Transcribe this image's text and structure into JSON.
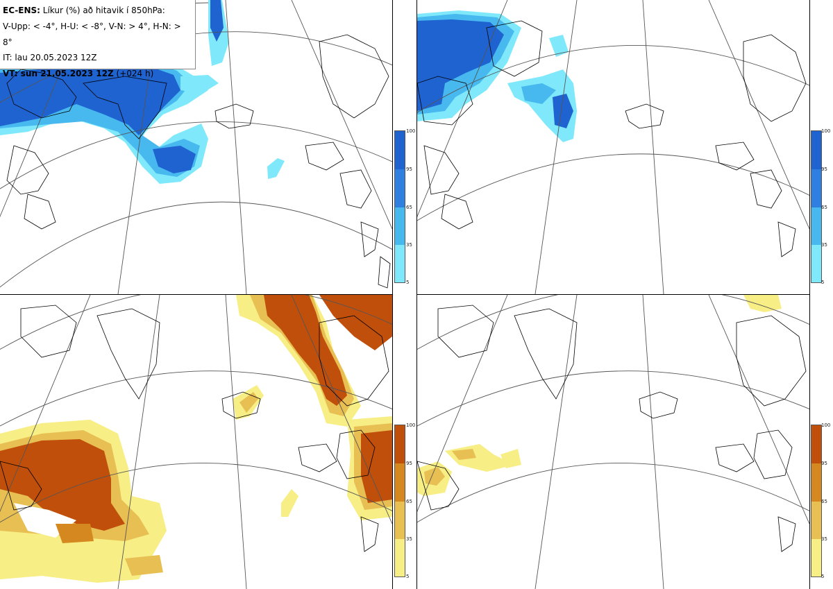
{
  "legend": {
    "model": "EC-ENS:",
    "title": "Líkur (%) að hitavik í 850hPa:",
    "thresholds": "V-Upp: < -4°, H-U: < -8°, V-N: > 4°, H-N: > 8°",
    "issue_time": "IT: lau 20.05.2023 12Z",
    "valid_label": "VT: sun 21.05.2023 12Z",
    "lead_time": "(+024 h)"
  },
  "colorbar": {
    "ticks": [
      "100",
      "95",
      "65",
      "35",
      "5"
    ],
    "blue_scale": [
      "#1f63d1",
      "#2f7fe0",
      "#47b9ef",
      "#7fe9fb",
      "#c7fbff"
    ],
    "orange_scale": [
      "#c04f0b",
      "#d58820",
      "#e8bf52",
      "#f7ee86",
      "#fffbb8"
    ]
  },
  "panels": [
    {
      "id": "V-Upp",
      "description": "cold anomaly < -4°"
    },
    {
      "id": "H-U",
      "description": "cold anomaly < -8°"
    },
    {
      "id": "V-N",
      "description": "warm anomaly > 4°"
    },
    {
      "id": "H-N",
      "description": "warm anomaly > 8°"
    }
  ]
}
